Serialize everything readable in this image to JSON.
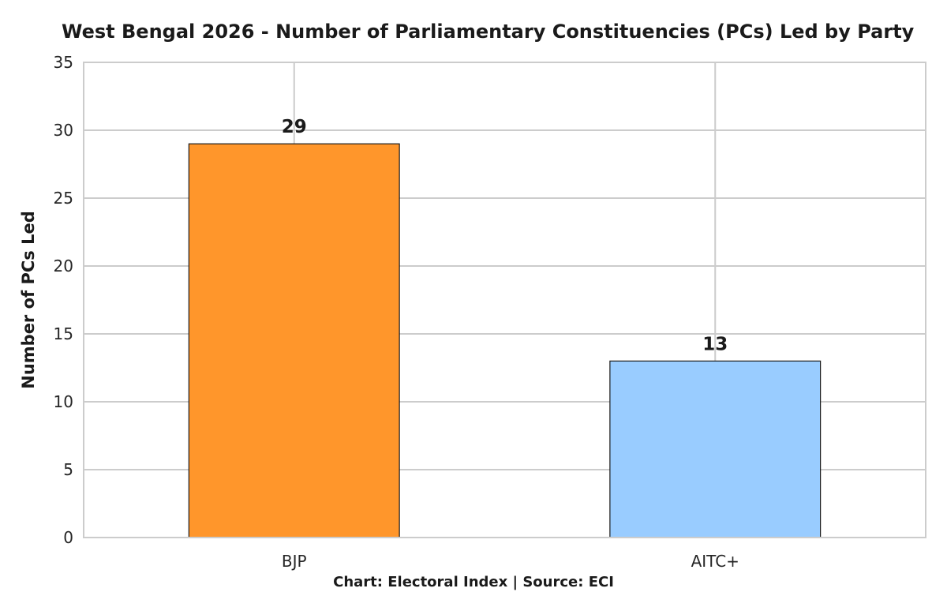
{
  "chart_data": {
    "type": "bar",
    "title": "West Bengal 2026 - Number of Parliamentary Constituencies (PCs) Led by Party",
    "xlabel": "",
    "ylabel": "Number of PCs Led",
    "categories": [
      "BJP",
      "AITC+"
    ],
    "values": [
      29,
      13
    ],
    "data_labels": [
      "29",
      "13"
    ],
    "colors": [
      "#ff962b",
      "#99ccff"
    ],
    "ylim": [
      0,
      35
    ],
    "yticks": [
      0,
      5,
      10,
      15,
      20,
      25,
      30,
      35
    ],
    "grid": true,
    "legend": "none"
  },
  "footer": "Chart: Electoral Index | Source: ECI"
}
